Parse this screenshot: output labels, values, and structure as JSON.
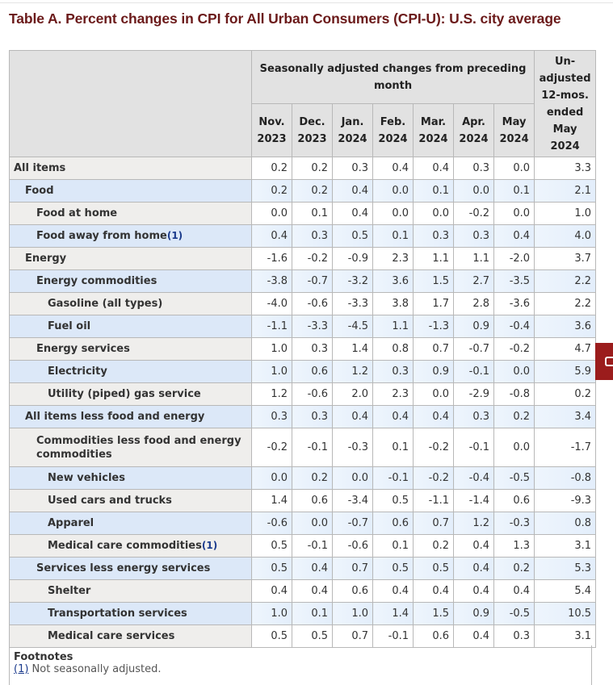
{
  "title": "Table A. Percent changes in CPI for All Urban Consumers (CPI-U): U.S. city average",
  "header": {
    "group_label": "Seasonally adjusted changes from preceding month",
    "months": [
      [
        "Nov.",
        "2023"
      ],
      [
        "Dec.",
        "2023"
      ],
      [
        "Jan.",
        "2024"
      ],
      [
        "Feb.",
        "2024"
      ],
      [
        "Mar.",
        "2024"
      ],
      [
        "Apr.",
        "2024"
      ],
      [
        "May",
        "2024"
      ]
    ],
    "unadjusted_label": [
      "Un-",
      "adjusted",
      "12-mos.",
      "ended",
      "May",
      "2024"
    ]
  },
  "rows": [
    {
      "label": "All items",
      "level": 0,
      "values": [
        "0.2",
        "0.2",
        "0.3",
        "0.4",
        "0.4",
        "0.3",
        "0.0",
        "3.3"
      ]
    },
    {
      "label": "Food",
      "level": 1,
      "values": [
        "0.2",
        "0.2",
        "0.4",
        "0.0",
        "0.1",
        "0.0",
        "0.1",
        "2.1"
      ]
    },
    {
      "label": "Food at home",
      "level": 2,
      "values": [
        "0.0",
        "0.1",
        "0.4",
        "0.0",
        "0.0",
        "-0.2",
        "0.0",
        "1.0"
      ]
    },
    {
      "label": "Food away from home",
      "level": 2,
      "footnote": "(1)",
      "values": [
        "0.4",
        "0.3",
        "0.5",
        "0.1",
        "0.3",
        "0.3",
        "0.4",
        "4.0"
      ]
    },
    {
      "label": "Energy",
      "level": 1,
      "values": [
        "-1.6",
        "-0.2",
        "-0.9",
        "2.3",
        "1.1",
        "1.1",
        "-2.0",
        "3.7"
      ]
    },
    {
      "label": "Energy commodities",
      "level": 2,
      "values": [
        "-3.8",
        "-0.7",
        "-3.2",
        "3.6",
        "1.5",
        "2.7",
        "-3.5",
        "2.2"
      ]
    },
    {
      "label": "Gasoline (all types)",
      "level": 3,
      "values": [
        "-4.0",
        "-0.6",
        "-3.3",
        "3.8",
        "1.7",
        "2.8",
        "-3.6",
        "2.2"
      ]
    },
    {
      "label": "Fuel oil",
      "level": 3,
      "values": [
        "-1.1",
        "-3.3",
        "-4.5",
        "1.1",
        "-1.3",
        "0.9",
        "-0.4",
        "3.6"
      ]
    },
    {
      "label": "Energy services",
      "level": 2,
      "values": [
        "1.0",
        "0.3",
        "1.4",
        "0.8",
        "0.7",
        "-0.7",
        "-0.2",
        "4.7"
      ]
    },
    {
      "label": "Electricity",
      "level": 3,
      "values": [
        "1.0",
        "0.6",
        "1.2",
        "0.3",
        "0.9",
        "-0.1",
        "0.0",
        "5.9"
      ]
    },
    {
      "label": "Utility (piped) gas service",
      "level": 3,
      "values": [
        "1.2",
        "-0.6",
        "2.0",
        "2.3",
        "0.0",
        "-2.9",
        "-0.8",
        "0.2"
      ]
    },
    {
      "label": "All items less food and energy",
      "level": 1,
      "values": [
        "0.3",
        "0.3",
        "0.4",
        "0.4",
        "0.4",
        "0.3",
        "0.2",
        "3.4"
      ]
    },
    {
      "label": "Commodities less food and energy commodities",
      "level": 2,
      "values": [
        "-0.2",
        "-0.1",
        "-0.3",
        "0.1",
        "-0.2",
        "-0.1",
        "0.0",
        "-1.7"
      ]
    },
    {
      "label": "New vehicles",
      "level": 3,
      "values": [
        "0.0",
        "0.2",
        "0.0",
        "-0.1",
        "-0.2",
        "-0.4",
        "-0.5",
        "-0.8"
      ]
    },
    {
      "label": "Used cars and trucks",
      "level": 3,
      "values": [
        "1.4",
        "0.6",
        "-3.4",
        "0.5",
        "-1.1",
        "-1.4",
        "0.6",
        "-9.3"
      ]
    },
    {
      "label": "Apparel",
      "level": 3,
      "values": [
        "-0.6",
        "0.0",
        "-0.7",
        "0.6",
        "0.7",
        "1.2",
        "-0.3",
        "0.8"
      ]
    },
    {
      "label": "Medical care commodities",
      "level": 3,
      "footnote": "(1)",
      "values": [
        "0.5",
        "-0.1",
        "-0.6",
        "0.1",
        "0.2",
        "0.4",
        "1.3",
        "3.1"
      ]
    },
    {
      "label": "Services less energy services",
      "level": 2,
      "values": [
        "0.5",
        "0.4",
        "0.7",
        "0.5",
        "0.5",
        "0.4",
        "0.2",
        "5.3"
      ]
    },
    {
      "label": "Shelter",
      "level": 3,
      "values": [
        "0.4",
        "0.4",
        "0.6",
        "0.4",
        "0.4",
        "0.4",
        "0.4",
        "5.4"
      ]
    },
    {
      "label": "Transportation services",
      "level": 3,
      "values": [
        "1.0",
        "0.1",
        "1.0",
        "1.4",
        "1.5",
        "0.9",
        "-0.5",
        "10.5"
      ]
    },
    {
      "label": "Medical care services",
      "level": 3,
      "values": [
        "0.5",
        "0.5",
        "0.7",
        "-0.1",
        "0.6",
        "0.4",
        "0.3",
        "3.1"
      ]
    }
  ],
  "footnotes": {
    "heading": "Footnotes",
    "items": [
      {
        "marker": "(1)",
        "text": " Not seasonally adjusted."
      }
    ]
  },
  "colors": {
    "title": "#6b1a1a",
    "alt_row": "#dce8f8",
    "label_bg": "#efeeec",
    "header_bg": "#e2e2e2",
    "side_tab": "#9b1c1c"
  }
}
